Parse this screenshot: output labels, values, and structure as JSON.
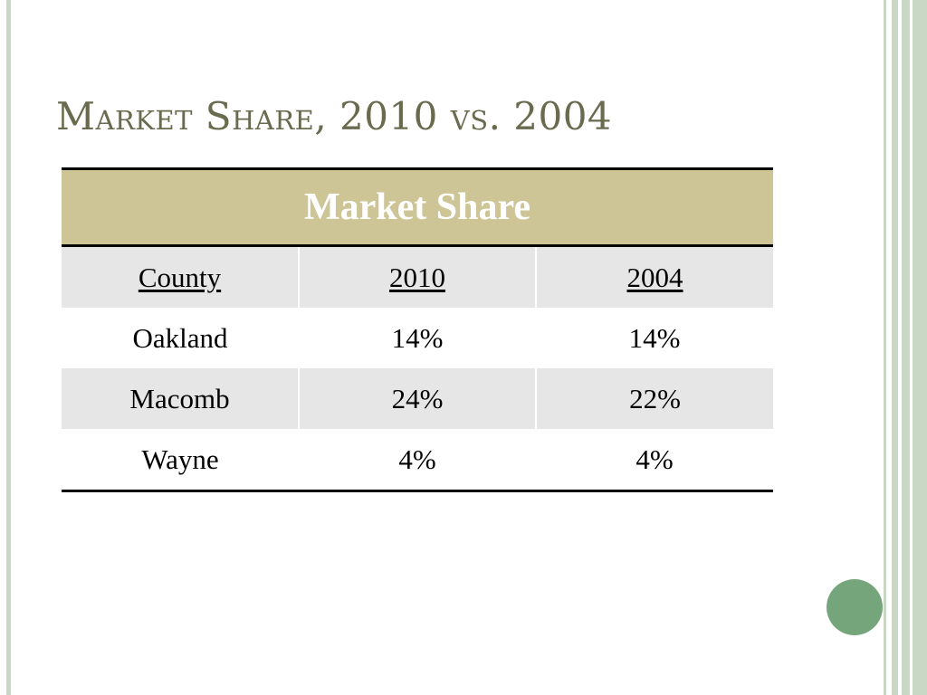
{
  "slide": {
    "title": "Market Share, 2010 vs. 2004"
  },
  "table": {
    "header": "Market Share",
    "columns": [
      "County",
      "2010",
      "2004"
    ],
    "rows": [
      [
        "Oakland",
        "14%",
        "14%"
      ],
      [
        "Macomb",
        "24%",
        "22%"
      ],
      [
        "Wayne",
        "4%",
        "4%"
      ]
    ]
  },
  "theme": {
    "title_color": "#6a6a4e",
    "header_fill": "#cdc595",
    "band_fill": "#e6e6e6",
    "accent_green": "#75a57a",
    "border_green": "#c8d8c4"
  }
}
